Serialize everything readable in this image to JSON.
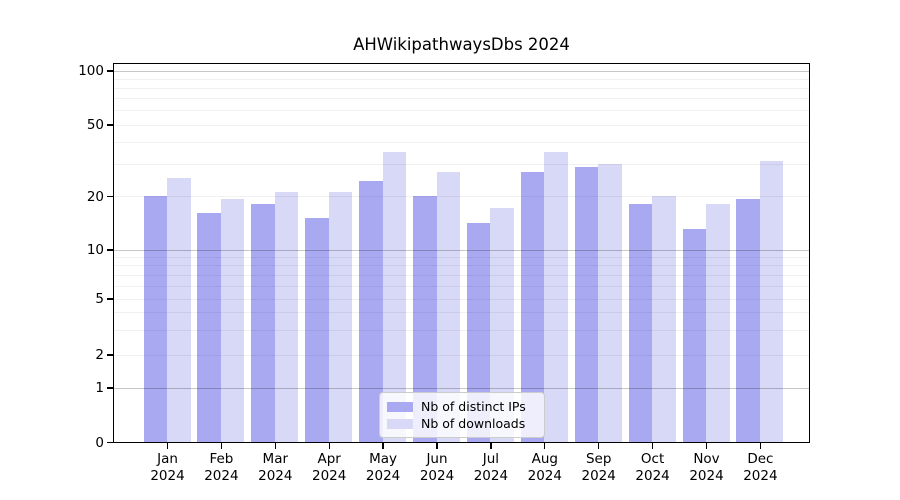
{
  "chart_data": {
    "type": "bar",
    "title": "AHWikipathwaysDbs 2024",
    "categories": [
      "Jan 2024",
      "Feb 2024",
      "Mar 2024",
      "Apr 2024",
      "May 2024",
      "Jun 2024",
      "Jul 2024",
      "Aug 2024",
      "Sep 2024",
      "Oct 2024",
      "Nov 2024",
      "Dec 2024"
    ],
    "series": [
      {
        "name": "Nb of distinct IPs",
        "color": "#a9a9f1",
        "values": [
          20,
          16,
          18,
          15,
          24,
          20,
          14,
          27,
          29,
          18,
          13,
          19
        ]
      },
      {
        "name": "Nb of downloads",
        "color": "#d8d8f7",
        "values": [
          25,
          19,
          21,
          21,
          35,
          27,
          17,
          35,
          30,
          20,
          18,
          31
        ]
      }
    ],
    "yscale": "symlog",
    "ylim": [
      0,
      110
    ],
    "yticks_labeled": [
      100,
      50,
      20,
      10,
      5,
      2,
      1,
      0
    ],
    "yticks_minor": [
      90,
      80,
      70,
      60,
      50,
      40,
      30,
      20,
      9,
      8,
      7,
      6,
      5,
      4,
      3,
      2
    ],
    "yticks_major_grid": [
      100,
      10,
      1
    ],
    "grid": true,
    "legend_position": "lower center",
    "axis_color": "#000000",
    "background_color": "#ffffff"
  }
}
